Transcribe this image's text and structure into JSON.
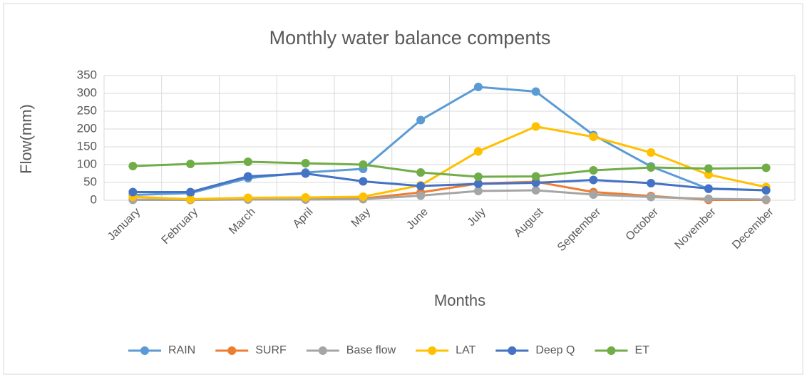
{
  "chart_data": {
    "type": "line",
    "title": "Monthly water balance compents",
    "x_label": "Months",
    "y_label": "Flow(mm)",
    "categories": [
      "January",
      "February",
      "March",
      "April",
      "May",
      "June",
      "July",
      "August",
      "September",
      "October",
      "November",
      "December"
    ],
    "series": [
      {
        "name": "RAIN",
        "color": "#5b9bd5",
        "values": [
          15,
          20,
          62,
          78,
          88,
          225,
          318,
          305,
          183,
          95,
          32,
          28
        ]
      },
      {
        "name": "SURF",
        "color": "#ed7d31",
        "values": [
          2,
          1,
          3,
          3,
          5,
          22,
          47,
          52,
          23,
          12,
          1,
          1
        ]
      },
      {
        "name": "Base flow",
        "color": "#a5a5a5",
        "values": [
          1,
          1,
          2,
          2,
          3,
          13,
          26,
          28,
          16,
          9,
          4,
          2
        ]
      },
      {
        "name": "LAT",
        "color": "#ffc000",
        "values": [
          10,
          3,
          7,
          8,
          10,
          42,
          137,
          207,
          178,
          134,
          72,
          37
        ]
      },
      {
        "name": "Deep Q",
        "color": "#4472c4",
        "values": [
          23,
          23,
          67,
          75,
          53,
          40,
          46,
          49,
          57,
          48,
          33,
          28
        ]
      },
      {
        "name": "ET",
        "color": "#70ad47",
        "values": [
          96,
          102,
          108,
          104,
          100,
          78,
          66,
          67,
          84,
          92,
          89,
          91
        ]
      }
    ],
    "ylim": [
      0,
      350
    ],
    "yticks": [
      0,
      50,
      100,
      150,
      200,
      250,
      300,
      350
    ],
    "grid": true,
    "legend": "bottom"
  }
}
